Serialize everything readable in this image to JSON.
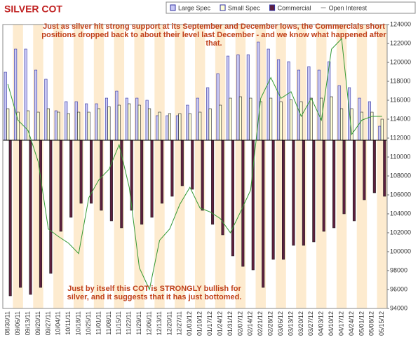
{
  "chart_data": {
    "type": "bar",
    "title": "SILVER COT",
    "categories": [
      "08/30/11",
      "09/06/11",
      "09/13/11",
      "09/20/11",
      "09/27/11",
      "10/04/11",
      "10/11/11",
      "10/18/11",
      "10/25/11",
      "11/01/11",
      "11/08/11",
      "11/15/11",
      "11/22/11",
      "11/29/11",
      "12/06/11",
      "12/13/11",
      "12/20/11",
      "12/27/11",
      "01/03/12",
      "01/10/12",
      "01/17/12",
      "01/24/12",
      "01/31/12",
      "02/07/12",
      "02/14/12",
      "02/21/12",
      "02/28/12",
      "03/06/12",
      "03/13/12",
      "03/20/12",
      "03/27/12",
      "04/03/12",
      "04/10/12",
      "04/17/12",
      "04/24/12",
      "05/01/12",
      "05/08/12",
      "05/15/12"
    ],
    "series": [
      {
        "name": "Large Spec",
        "color": "#c8c8f4",
        "values": [
          97,
          130,
          130,
          100,
          87,
          42,
          55,
          55,
          52,
          52,
          60,
          70,
          60,
          60,
          57,
          35,
          35,
          35,
          50,
          60,
          75,
          95,
          120,
          122,
          122,
          140,
          130,
          115,
          112,
          100,
          105,
          100,
          112,
          78,
          75,
          60,
          55,
          20
        ]
      },
      {
        "name": "Small Spec",
        "color": "#ffffd6",
        "values": [
          45,
          40,
          42,
          40,
          45,
          40,
          38,
          40,
          40,
          45,
          48,
          50,
          52,
          50,
          45,
          40,
          38,
          38,
          38,
          40,
          45,
          50,
          60,
          62,
          60,
          55,
          60,
          55,
          58,
          55,
          60,
          60,
          62,
          45,
          45,
          40,
          40,
          30
        ]
      },
      {
        "name": "Commercial",
        "color": "#5e1f3e",
        "values": [
          -222,
          -210,
          -220,
          -210,
          -190,
          -130,
          -110,
          -90,
          -90,
          -100,
          -115,
          -125,
          -100,
          -120,
          -110,
          -90,
          -80,
          -65,
          -70,
          -100,
          -120,
          -135,
          -165,
          -180,
          -185,
          -210,
          -170,
          -170,
          -150,
          -150,
          -145,
          -130,
          -125,
          -105,
          -115,
          -85,
          -75,
          -80
        ]
      },
      {
        "name": "Open Interest",
        "color": "#339933",
        "axis": "y2",
        "values": [
          117700,
          113900,
          112800,
          109500,
          102400,
          101600,
          100900,
          99800,
          105700,
          107600,
          108700,
          111300,
          106800,
          98300,
          96000,
          101200,
          102400,
          105000,
          106800,
          104600,
          104200,
          103500,
          102000,
          104200,
          106500,
          116200,
          118400,
          116200,
          116900,
          114300,
          116200,
          113900,
          121400,
          122500,
          112400,
          113900,
          114300,
          114300
        ]
      }
    ],
    "ylim": [
      -240,
      165
    ],
    "y2lim": [
      94000,
      124000
    ],
    "y2ticks": [
      94000,
      96000,
      98000,
      100000,
      102000,
      104000,
      106000,
      108000,
      110000,
      112000,
      114000,
      116000,
      118000,
      120000,
      122000,
      124000
    ],
    "legend": "top-right",
    "band_color": "#fdebcf",
    "annotations": [
      [
        "Just as silver hit strong support at its September and December lows, the Commercials short",
        "positions dropped back to about their level last December - and we know what happened after",
        "that."
      ],
      [
        "Just by itself this COT is STRONGLY bullish for",
        "silver, and it suggests that it has just bottomed."
      ]
    ]
  }
}
